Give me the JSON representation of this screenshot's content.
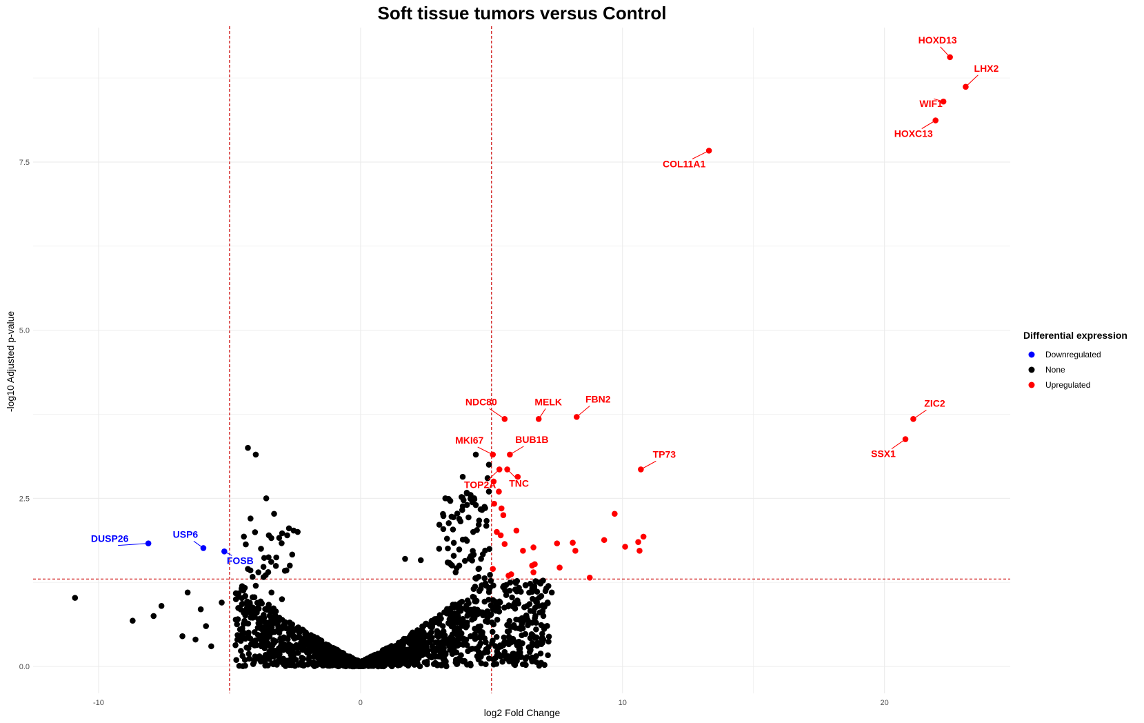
{
  "chart_data": {
    "type": "scatter",
    "title": "Soft tissue tumors versus Control",
    "xlabel": "log2 Fold Change",
    "ylabel": "-log10 Adjusted p-value",
    "xlim": [
      -12.5,
      24.8
    ],
    "ylim": [
      -0.4,
      9.5
    ],
    "x_ticks": [
      -10,
      0,
      10,
      20
    ],
    "x_tick_labels": [
      "-10",
      "0",
      "10",
      "20"
    ],
    "y_ticks": [
      0.0,
      2.5,
      5.0,
      7.5
    ],
    "y_tick_labels": [
      "0.0",
      "2.5",
      "5.0",
      "7.5"
    ],
    "grid": true,
    "threshold_lines": {
      "log2fc": [
        -5,
        5
      ],
      "neg_log10_padj": 1.3
    },
    "legend": {
      "title": "Differential expression",
      "position": "right",
      "entries": [
        {
          "name": "Downregulated",
          "color": "#0000ff"
        },
        {
          "name": "None",
          "color": "#000000"
        },
        {
          "name": "Upregulated",
          "color": "#ff0000"
        }
      ]
    },
    "colors": {
      "Downregulated": "#0000ff",
      "None": "#000000",
      "Upregulated": "#ff0000",
      "threshold": "#cc0000",
      "grid": "#ebebeb"
    },
    "labeled_points": [
      {
        "gene": "HOXD13",
        "x": 22.5,
        "y": 9.06,
        "group": "Upregulated"
      },
      {
        "gene": "LHX2",
        "x": 23.1,
        "y": 8.62,
        "group": "Upregulated"
      },
      {
        "gene": "WIF1",
        "x": 22.25,
        "y": 8.4,
        "group": "Upregulated"
      },
      {
        "gene": "HOXC13",
        "x": 21.95,
        "y": 8.12,
        "group": "Upregulated"
      },
      {
        "gene": "COL11A1",
        "x": 13.3,
        "y": 7.67,
        "group": "Upregulated"
      },
      {
        "gene": "ZIC2",
        "x": 21.1,
        "y": 3.68,
        "group": "Upregulated"
      },
      {
        "gene": "SSX1",
        "x": 20.8,
        "y": 3.38,
        "group": "Upregulated"
      },
      {
        "gene": "NDC80",
        "x": 5.5,
        "y": 3.68,
        "group": "Upregulated"
      },
      {
        "gene": "MELK",
        "x": 6.8,
        "y": 3.68,
        "group": "Upregulated"
      },
      {
        "gene": "FBN2",
        "x": 8.25,
        "y": 3.71,
        "group": "Upregulated"
      },
      {
        "gene": "MKI67",
        "x": 5.05,
        "y": 3.15,
        "group": "Upregulated"
      },
      {
        "gene": "BUB1B",
        "x": 5.7,
        "y": 3.15,
        "group": "Upregulated"
      },
      {
        "gene": "TP73",
        "x": 10.7,
        "y": 2.93,
        "group": "Upregulated"
      },
      {
        "gene": "TOP2A",
        "x": 5.3,
        "y": 2.93,
        "group": "Upregulated"
      },
      {
        "gene": "TNC",
        "x": 5.6,
        "y": 2.93,
        "group": "Upregulated"
      },
      {
        "gene": "DUSP26",
        "x": -8.1,
        "y": 1.83,
        "group": "Downregulated"
      },
      {
        "gene": "USP6",
        "x": -6.0,
        "y": 1.76,
        "group": "Downregulated"
      },
      {
        "gene": "FOSB",
        "x": -5.2,
        "y": 1.71,
        "group": "Downregulated"
      }
    ],
    "unlabeled_upregulated": [
      [
        5.08,
        2.75
      ],
      [
        5.28,
        2.6
      ],
      [
        5.1,
        2.42
      ],
      [
        5.38,
        2.35
      ],
      [
        5.45,
        2.25
      ],
      [
        6.0,
        2.82
      ],
      [
        9.7,
        2.27
      ],
      [
        5.2,
        2.0
      ],
      [
        5.35,
        1.95
      ],
      [
        5.95,
        2.02
      ],
      [
        5.5,
        1.82
      ],
      [
        6.6,
        1.77
      ],
      [
        6.2,
        1.72
      ],
      [
        7.5,
        1.83
      ],
      [
        8.1,
        1.84
      ],
      [
        8.2,
        1.72
      ],
      [
        9.3,
        1.88
      ],
      [
        10.1,
        1.78
      ],
      [
        10.6,
        1.85
      ],
      [
        10.8,
        1.93
      ],
      [
        10.65,
        1.72
      ],
      [
        6.65,
        1.52
      ],
      [
        6.55,
        1.5
      ],
      [
        7.6,
        1.47
      ],
      [
        5.05,
        1.45
      ],
      [
        5.75,
        1.37
      ],
      [
        5.65,
        1.35
      ],
      [
        6.6,
        1.4
      ],
      [
        8.75,
        1.32
      ]
    ],
    "unlabeled_none_notable": [
      [
        -10.9,
        1.02
      ],
      [
        -8.7,
        0.68
      ],
      [
        -7.9,
        0.75
      ],
      [
        -7.6,
        0.9
      ],
      [
        -6.8,
        0.45
      ],
      [
        -6.6,
        1.1
      ],
      [
        -6.3,
        0.4
      ],
      [
        -6.1,
        0.85
      ],
      [
        -5.9,
        0.6
      ],
      [
        -5.7,
        0.3
      ],
      [
        -5.3,
        0.95
      ],
      [
        -4.6,
        0.55
      ],
      [
        -4.3,
        3.25
      ],
      [
        -4.0,
        3.15
      ],
      [
        -3.6,
        2.5
      ],
      [
        -4.2,
        2.2
      ],
      [
        -3.3,
        2.27
      ],
      [
        -3.8,
        1.75
      ],
      [
        -3.5,
        1.95
      ],
      [
        -4.3,
        1.45
      ],
      [
        -3.9,
        1.4
      ],
      [
        -4.0,
        1.2
      ],
      [
        -3.4,
        1.1
      ],
      [
        -3.3,
        0.35
      ],
      [
        -2.8,
        1.95
      ],
      [
        -2.4,
        2.0
      ],
      [
        -2.7,
        1.5
      ],
      [
        -3.0,
        1.0
      ],
      [
        -3.1,
        0.5
      ],
      [
        -2.5,
        0.3
      ],
      [
        1.7,
        1.6
      ],
      [
        2.3,
        1.58
      ],
      [
        3.9,
        2.82
      ],
      [
        4.4,
        3.15
      ],
      [
        4.2,
        2.55
      ],
      [
        4.4,
        2.4
      ],
      [
        4.3,
        2.0
      ],
      [
        3.3,
        1.9
      ],
      [
        3.0,
        1.75
      ],
      [
        4.9,
        3.0
      ],
      [
        4.85,
        2.8
      ],
      [
        4.9,
        2.6
      ],
      [
        4.6,
        1.6
      ],
      [
        4.5,
        1.45
      ],
      [
        4.8,
        1.2
      ],
      [
        7.3,
        1.1
      ],
      [
        6.8,
        0.9
      ],
      [
        6.7,
        0.65
      ],
      [
        6.25,
        0.88
      ],
      [
        4.2,
        0.45
      ],
      [
        3.5,
        0.35
      ]
    ]
  }
}
